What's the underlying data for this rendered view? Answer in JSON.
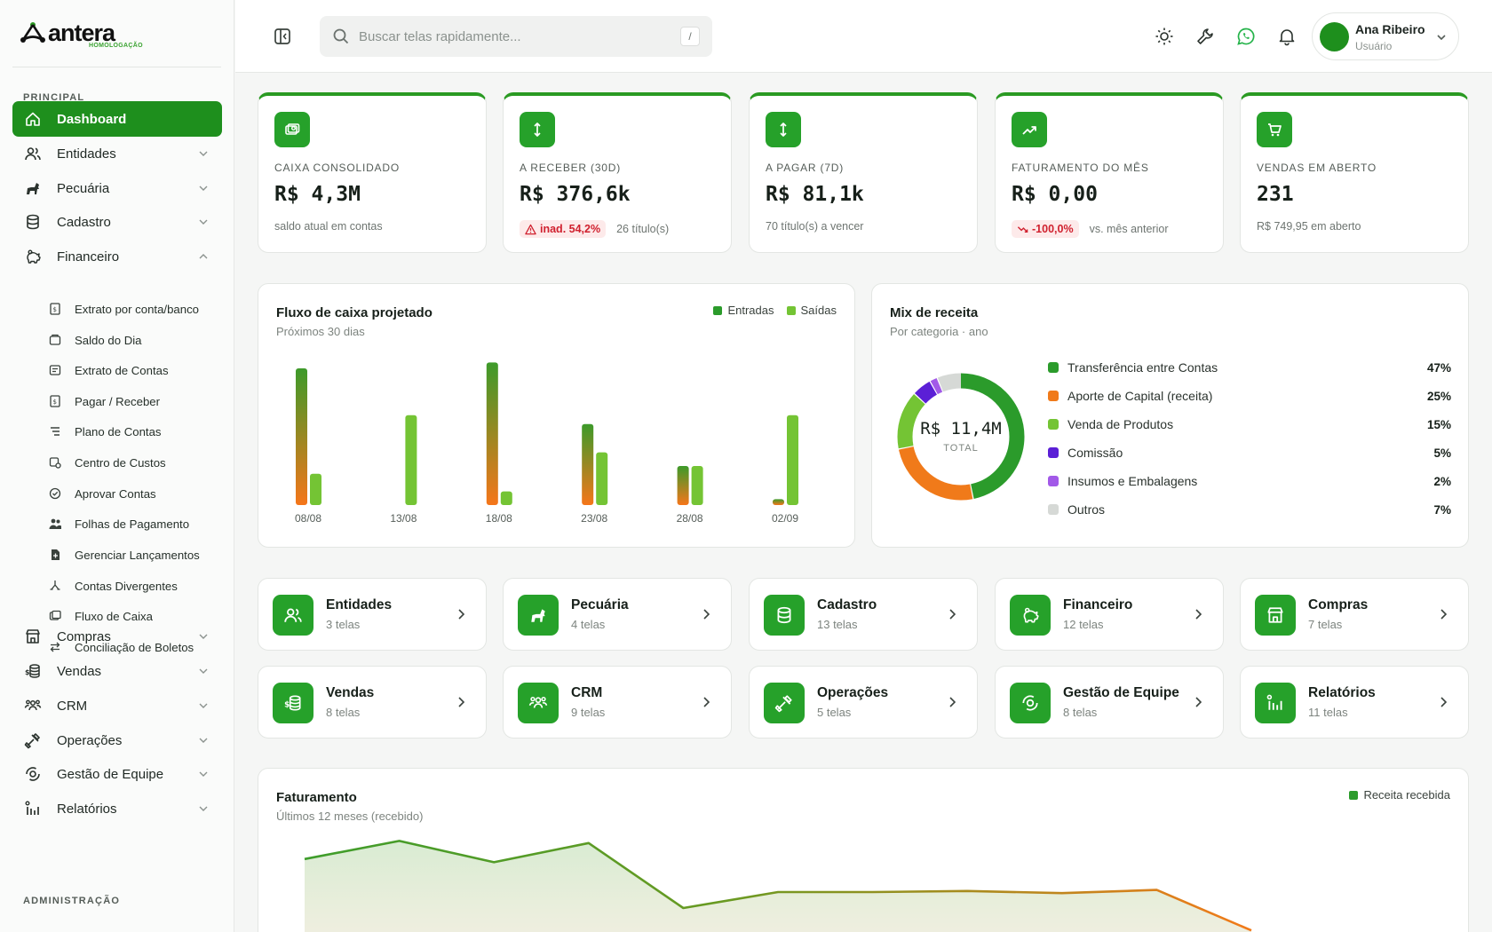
{
  "brand": {
    "name": "antera",
    "env": "HOMOLOGAÇÃO"
  },
  "sidebar": {
    "principal_label": "PRINCIPAL",
    "admin_label": "ADMINISTRAÇÃO",
    "items": [
      {
        "label": "Dashboard",
        "icon": "home-icon",
        "active": true
      },
      {
        "label": "Entidades",
        "icon": "users-icon"
      },
      {
        "label": "Pecuária",
        "icon": "horse-icon"
      },
      {
        "label": "Cadastro",
        "icon": "database-icon"
      },
      {
        "label": "Financeiro",
        "icon": "piggy-bank-icon",
        "expanded": true
      },
      {
        "label": "Compras",
        "icon": "store-icon"
      },
      {
        "label": "Vendas",
        "icon": "coins-icon"
      },
      {
        "label": "CRM",
        "icon": "team-icon"
      },
      {
        "label": "Operações",
        "icon": "tools-icon"
      },
      {
        "label": "Gestão de Equipe",
        "icon": "target-icon"
      },
      {
        "label": "Relatórios",
        "icon": "report-icon"
      }
    ],
    "financeiro_sub": [
      "Extrato por conta/banco",
      "Saldo do Dia",
      "Extrato de Contas",
      "Pagar / Receber",
      "Plano de Contas",
      "Centro de Custos",
      "Aprovar Contas",
      "Folhas de Pagamento",
      "Gerenciar Lançamentos",
      "Contas Divergentes",
      "Fluxo de Caixa",
      "Conciliação de Boletos"
    ]
  },
  "header": {
    "search_placeholder": "Buscar telas rapidamente...",
    "search_shortcut": "/",
    "user_name": "Ana Ribeiro",
    "user_role": "Usuário"
  },
  "kpis": [
    {
      "label": "CAIXA CONSOLIDADO",
      "value": "R$ 4,3M",
      "note": "saldo atual em contas",
      "icon": "cash-icon"
    },
    {
      "label": "A RECEBER (30D)",
      "value": "R$ 376,6k",
      "badge": "inad. 54,2%",
      "note": "26 título(s)",
      "icon": "arrows-vertical-icon"
    },
    {
      "label": "A PAGAR (7D)",
      "value": "R$ 81,1k",
      "note": "70 título(s) a vencer",
      "icon": "arrows-vertical-icon"
    },
    {
      "label": "FATURAMENTO DO MÊS",
      "value": "R$ 0,00",
      "badge": "-100,0%",
      "note": "vs. mês anterior",
      "icon": "trending-up-icon"
    },
    {
      "label": "VENDAS EM ABERTO",
      "value": "231",
      "note": "R$ 749,95 em aberto",
      "icon": "cart-icon"
    }
  ],
  "cashflow": {
    "title": "Fluxo de caixa projetado",
    "subtitle": "Próximos 30 dias",
    "legend_in": "Entradas",
    "legend_out": "Saídas"
  },
  "mix": {
    "title": "Mix de receita",
    "subtitle": "Por categoria · ano",
    "total_value": "R$ 11,4M",
    "total_label": "TOTAL",
    "rows": [
      {
        "label": "Transferência entre Contas",
        "pct": "47%",
        "color": "#2b9b2b"
      },
      {
        "label": "Aporte de Capital (receita)",
        "pct": "25%",
        "color": "#f07a1a"
      },
      {
        "label": "Venda de Produtos",
        "pct": "15%",
        "color": "#74c434"
      },
      {
        "label": "Comissão",
        "pct": "5%",
        "color": "#5b1fd6"
      },
      {
        "label": "Insumos e Embalagens",
        "pct": "2%",
        "color": "#a259e8"
      },
      {
        "label": "Outros",
        "pct": "7%",
        "color": "#d6d9d6"
      }
    ]
  },
  "modules": [
    {
      "title": "Entidades",
      "sub": "3 telas",
      "icon": "users-icon"
    },
    {
      "title": "Pecuária",
      "sub": "4 telas",
      "icon": "horse-icon"
    },
    {
      "title": "Cadastro",
      "sub": "13 telas",
      "icon": "database-icon"
    },
    {
      "title": "Financeiro",
      "sub": "12 telas",
      "icon": "piggy-bank-icon"
    },
    {
      "title": "Compras",
      "sub": "7 telas",
      "icon": "store-icon"
    },
    {
      "title": "Vendas",
      "sub": "8 telas",
      "icon": "coins-icon"
    },
    {
      "title": "CRM",
      "sub": "9 telas",
      "icon": "team-icon"
    },
    {
      "title": "Operações",
      "sub": "5 telas",
      "icon": "tools-icon"
    },
    {
      "title": "Gestão de Equipe",
      "sub": "8 telas",
      "icon": "target-icon"
    },
    {
      "title": "Relatórios",
      "sub": "11 telas",
      "icon": "report-icon"
    }
  ],
  "revenue": {
    "title": "Faturamento",
    "subtitle": "Últimos 12 meses (recebido)",
    "legend": "Receita recebida"
  },
  "chart_data": [
    {
      "type": "bar",
      "title": "Fluxo de caixa projetado",
      "categories": [
        "08/08",
        "",
        "13/08",
        "",
        "18/08",
        "",
        "23/08",
        "",
        "28/08",
        "",
        "02/09"
      ],
      "series": [
        {
          "name": "Entradas",
          "values": [
            140,
            0,
            0,
            0,
            146,
            0,
            83,
            0,
            40,
            0,
            6
          ]
        },
        {
          "name": "Saídas",
          "values": [
            32,
            0,
            92,
            0,
            14,
            0,
            54,
            0,
            40,
            0,
            92
          ]
        }
      ],
      "tick_labels": [
        "08/08",
        "13/08",
        "18/08",
        "23/08",
        "28/08",
        "02/09"
      ]
    },
    {
      "type": "pie",
      "title": "Mix de receita",
      "categories": [
        "Transferência entre Contas",
        "Aporte de Capital (receita)",
        "Venda de Produtos",
        "Comissão",
        "Insumos e Embalagens",
        "Outros"
      ],
      "values": [
        47,
        25,
        15,
        5,
        2,
        7
      ]
    },
    {
      "type": "area",
      "title": "Faturamento",
      "series": [
        {
          "name": "Receita recebida",
          "values": [
            61,
            78,
            58,
            76,
            15,
            30,
            30,
            31,
            29,
            32,
            -6
          ]
        }
      ]
    }
  ]
}
